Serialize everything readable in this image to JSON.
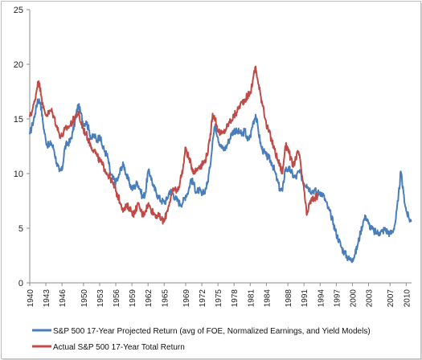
{
  "chart_data": {
    "type": "line",
    "title": "",
    "xlabel": "",
    "ylabel": "",
    "xlim": [
      1940,
      2011
    ],
    "ylim": [
      0,
      25
    ],
    "y_ticks": [
      "0",
      "5",
      "10",
      "15",
      "20",
      "25"
    ],
    "x_ticks": [
      "1940",
      "1943",
      "1946",
      "1950",
      "1953",
      "1956",
      "1959",
      "1962",
      "1965",
      "1969",
      "1972",
      "1975",
      "1978",
      "1981",
      "1984",
      "1988",
      "1991",
      "1994",
      "1997",
      "2000",
      "2003",
      "2007",
      "2010"
    ],
    "x_tick_years": [
      1940,
      1943,
      1946,
      1950,
      1953,
      1956,
      1959,
      1962,
      1965,
      1969,
      1972,
      1975,
      1978,
      1981,
      1984,
      1988,
      1991,
      1994,
      1997,
      2000,
      2003,
      2007,
      2010
    ],
    "grid": false,
    "legend_position": "bottom",
    "series": [
      {
        "name": "S&P 500 17-Year Projected Return (avg of FOE, Normalized Earnings, and Yield Models)",
        "color": "#4a7ebb",
        "points": [
          [
            1940,
            13.6
          ],
          [
            1940.5,
            14.5
          ],
          [
            1941,
            15.5
          ],
          [
            1941.5,
            16.8
          ],
          [
            1942,
            16.5
          ],
          [
            1942.5,
            14.5
          ],
          [
            1943,
            13
          ],
          [
            1943.5,
            12.5
          ],
          [
            1944,
            12.8
          ],
          [
            1944.5,
            12.2
          ],
          [
            1945,
            11
          ],
          [
            1945.5,
            10.2
          ],
          [
            1946,
            10.3
          ],
          [
            1946.5,
            12.3
          ],
          [
            1947,
            12.8
          ],
          [
            1947.5,
            12.9
          ],
          [
            1948,
            13.8
          ],
          [
            1948.5,
            15
          ],
          [
            1949,
            16.3
          ],
          [
            1949.5,
            15.5
          ],
          [
            1950,
            14.5
          ],
          [
            1950.5,
            14.8
          ],
          [
            1951,
            14
          ],
          [
            1951.5,
            13.2
          ],
          [
            1952,
            13.5
          ],
          [
            1952.5,
            13
          ],
          [
            1953,
            13.5
          ],
          [
            1953.5,
            12.5
          ],
          [
            1954,
            12
          ],
          [
            1954.5,
            11.5
          ],
          [
            1955,
            10
          ],
          [
            1955.5,
            9.5
          ],
          [
            1956,
            9.2
          ],
          [
            1956.5,
            9.6
          ],
          [
            1957,
            10.6
          ],
          [
            1957.5,
            10.8
          ],
          [
            1958,
            9.8
          ],
          [
            1958.5,
            9.2
          ],
          [
            1959,
            8.6
          ],
          [
            1959.5,
            8.8
          ],
          [
            1960,
            9.2
          ],
          [
            1960.5,
            8.6
          ],
          [
            1961,
            7.8
          ],
          [
            1961.5,
            8.2
          ],
          [
            1962,
            10.2
          ],
          [
            1962.5,
            9.8
          ],
          [
            1963,
            8.8
          ],
          [
            1963.5,
            8.3
          ],
          [
            1964,
            7.8
          ],
          [
            1964.5,
            7.5
          ],
          [
            1965,
            7.4
          ],
          [
            1965.5,
            7.6
          ],
          [
            1966,
            8.4
          ],
          [
            1966.5,
            8.3
          ],
          [
            1967,
            7.8
          ],
          [
            1967.5,
            7.5
          ],
          [
            1968,
            7.2
          ],
          [
            1968.5,
            7.4
          ],
          [
            1969,
            8
          ],
          [
            1969.5,
            8.4
          ],
          [
            1970,
            9.5
          ],
          [
            1970.5,
            9
          ],
          [
            1971,
            8.3
          ],
          [
            1971.5,
            8.5
          ],
          [
            1972,
            8
          ],
          [
            1972.5,
            8.4
          ],
          [
            1973,
            9
          ],
          [
            1973.5,
            10.5
          ],
          [
            1974,
            13
          ],
          [
            1974.5,
            14.5
          ],
          [
            1975,
            13.3
          ],
          [
            1975.5,
            12.5
          ],
          [
            1976,
            12.2
          ],
          [
            1976.5,
            12.4
          ],
          [
            1977,
            13
          ],
          [
            1977.5,
            13.6
          ],
          [
            1978,
            14
          ],
          [
            1978.5,
            13.8
          ],
          [
            1979,
            13.8
          ],
          [
            1979.5,
            13.5
          ],
          [
            1980,
            14
          ],
          [
            1980.5,
            13
          ],
          [
            1981,
            13.4
          ],
          [
            1981.5,
            14.6
          ],
          [
            1982,
            15.4
          ],
          [
            1982.5,
            14
          ],
          [
            1983,
            12.5
          ],
          [
            1983.5,
            12
          ],
          [
            1984,
            11.6
          ],
          [
            1984.5,
            11.4
          ],
          [
            1985,
            11
          ],
          [
            1985.5,
            10.3
          ],
          [
            1986,
            9.4
          ],
          [
            1986.5,
            8.6
          ],
          [
            1987,
            8.4
          ],
          [
            1987.5,
            10.4
          ],
          [
            1988,
            10.4
          ],
          [
            1988.5,
            10.3
          ],
          [
            1989,
            9.8
          ],
          [
            1989.5,
            9.6
          ],
          [
            1990,
            10.2
          ],
          [
            1990.5,
            9.8
          ],
          [
            1991,
            9.1
          ],
          [
            1991.5,
            9
          ],
          [
            1992,
            8.6
          ],
          [
            1992.5,
            8.4
          ],
          [
            1993,
            8.5
          ],
          [
            1993.5,
            8.2
          ],
          [
            1994,
            8.3
          ],
          [
            1994.5,
            8.1
          ],
          [
            1995,
            7.5
          ],
          [
            1995.5,
            6.8
          ],
          [
            1996,
            6.2
          ],
          [
            1996.5,
            5.4
          ],
          [
            1997,
            4.5
          ],
          [
            1997.5,
            3.9
          ],
          [
            1998,
            3.2
          ],
          [
            1998.5,
            2.8
          ],
          [
            1999,
            2.4
          ],
          [
            1999.5,
            2.1
          ],
          [
            2000,
            2.2
          ],
          [
            2000.5,
            2.6
          ],
          [
            2001,
            3.5
          ],
          [
            2001.5,
            4.6
          ],
          [
            2002,
            5.6
          ],
          [
            2002.5,
            6.1
          ],
          [
            2003,
            5.4
          ],
          [
            2003.5,
            5
          ],
          [
            2004,
            4.7
          ],
          [
            2004.5,
            4.6
          ],
          [
            2005,
            4.6
          ],
          [
            2005.5,
            4.7
          ],
          [
            2006,
            4.9
          ],
          [
            2006.5,
            4.7
          ],
          [
            2007,
            4.5
          ],
          [
            2007.5,
            4.7
          ],
          [
            2008,
            5.6
          ],
          [
            2008.5,
            7.5
          ],
          [
            2009,
            10.2
          ],
          [
            2009.5,
            8.2
          ],
          [
            2010,
            6.6
          ],
          [
            2010.5,
            5.9
          ],
          [
            2011,
            5.6
          ]
        ]
      },
      {
        "name": "Actual S&P 500 17-Year Total Return",
        "color": "#be4b48",
        "points": [
          [
            1940,
            15.2
          ],
          [
            1940.5,
            15.8
          ],
          [
            1941,
            16.8
          ],
          [
            1941.5,
            18.4
          ],
          [
            1942,
            17.8
          ],
          [
            1942.5,
            16
          ],
          [
            1943,
            15.4
          ],
          [
            1943.5,
            15.5
          ],
          [
            1944,
            15.8
          ],
          [
            1944.5,
            15.2
          ],
          [
            1945,
            14.4
          ],
          [
            1945.5,
            13.6
          ],
          [
            1946,
            13.4
          ],
          [
            1946.5,
            14
          ],
          [
            1947,
            14.2
          ],
          [
            1947.5,
            14.4
          ],
          [
            1948,
            14.8
          ],
          [
            1948.5,
            15.3
          ],
          [
            1949,
            15.5
          ],
          [
            1949.5,
            14.7
          ],
          [
            1950,
            14
          ],
          [
            1950.5,
            13.6
          ],
          [
            1951,
            13
          ],
          [
            1951.5,
            12.4
          ],
          [
            1952,
            12.2
          ],
          [
            1952.5,
            11.6
          ],
          [
            1953,
            11.2
          ],
          [
            1953.5,
            10.8
          ],
          [
            1954,
            10.4
          ],
          [
            1954.5,
            9.9
          ],
          [
            1955,
            9.6
          ],
          [
            1955.5,
            9
          ],
          [
            1956,
            8.4
          ],
          [
            1956.5,
            7.8
          ],
          [
            1957,
            7.2
          ],
          [
            1957.5,
            6.6
          ],
          [
            1958,
            7
          ],
          [
            1958.5,
            6.9
          ],
          [
            1959,
            6.5
          ],
          [
            1959.5,
            6.3
          ],
          [
            1960,
            7.2
          ],
          [
            1960.5,
            6.8
          ],
          [
            1961,
            6.2
          ],
          [
            1961.5,
            6.6
          ],
          [
            1962,
            7.2
          ],
          [
            1962.5,
            6.8
          ],
          [
            1963,
            6.4
          ],
          [
            1963.5,
            6.2
          ],
          [
            1964,
            6.1
          ],
          [
            1964.5,
            5.8
          ],
          [
            1965,
            5.6
          ],
          [
            1965.5,
            6.5
          ],
          [
            1966,
            7.4
          ],
          [
            1966.5,
            8.2
          ],
          [
            1967,
            8.6
          ],
          [
            1967.5,
            8.4
          ],
          [
            1968,
            9.4
          ],
          [
            1968.5,
            10.5
          ],
          [
            1969,
            12.4
          ],
          [
            1969.5,
            11.5
          ],
          [
            1970,
            10.8
          ],
          [
            1970.5,
            10.2
          ],
          [
            1971,
            10.3
          ],
          [
            1971.5,
            10.7
          ],
          [
            1972,
            10.8
          ],
          [
            1972.5,
            11.1
          ],
          [
            1973,
            11.8
          ],
          [
            1973.5,
            13
          ],
          [
            1974,
            15.5
          ],
          [
            1974.5,
            15
          ],
          [
            1975,
            14
          ],
          [
            1975.5,
            13.6
          ],
          [
            1976,
            13.7
          ],
          [
            1976.5,
            14.1
          ],
          [
            1977,
            14.6
          ],
          [
            1977.5,
            14.9
          ],
          [
            1978,
            15.3
          ],
          [
            1978.5,
            15.6
          ],
          [
            1979,
            16.2
          ],
          [
            1979.5,
            16.5
          ],
          [
            1980,
            16.8
          ],
          [
            1980.5,
            17.1
          ],
          [
            1981,
            17.3
          ],
          [
            1981.5,
            18.6
          ],
          [
            1982,
            19.8
          ],
          [
            1982.5,
            18.2
          ],
          [
            1983,
            17
          ],
          [
            1983.5,
            16
          ],
          [
            1984,
            14.4
          ],
          [
            1984.5,
            13.8
          ],
          [
            1985,
            13
          ],
          [
            1985.5,
            12.2
          ],
          [
            1986,
            11.4
          ],
          [
            1986.5,
            10.8
          ],
          [
            1987,
            10
          ],
          [
            1987.5,
            12.5
          ],
          [
            1988,
            12.4
          ],
          [
            1988.5,
            11.4
          ],
          [
            1989,
            10.6
          ],
          [
            1989.5,
            11.5
          ],
          [
            1990,
            12
          ],
          [
            1990.5,
            10.3
          ],
          [
            1991,
            8.5
          ],
          [
            1991.5,
            6.2
          ],
          [
            1992,
            7.2
          ],
          [
            1992.5,
            7.6
          ],
          [
            1993,
            7.8
          ],
          [
            1993.5,
            7.9
          ]
        ]
      }
    ]
  },
  "legend": {
    "items": [
      {
        "label": "S&P 500 17-Year Projected Return (avg of FOE, Normalized Earnings, and Yield Models)",
        "color": "#4a7ebb"
      },
      {
        "label": "Actual S&P 500 17-Year Total Return",
        "color": "#be4b48"
      }
    ]
  }
}
